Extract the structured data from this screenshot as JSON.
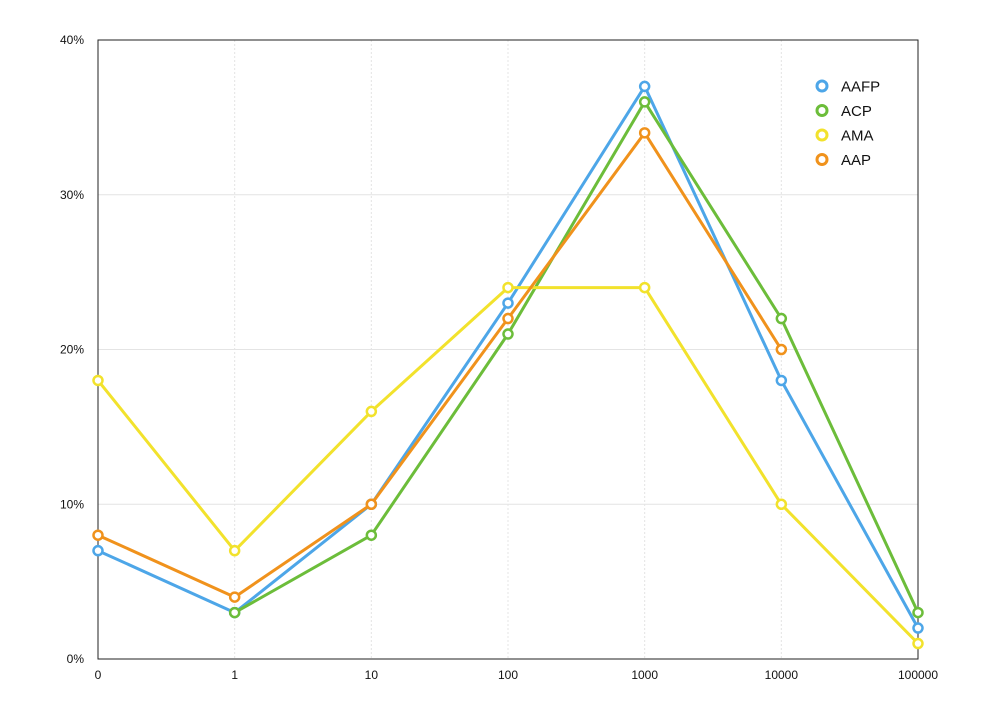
{
  "chart_data": {
    "type": "line",
    "title": "",
    "xlabel": "",
    "ylabel": "",
    "categories": [
      "0",
      "1",
      "10",
      "100",
      "1000",
      "10000",
      "100000"
    ],
    "y_ticks": [
      "0%",
      "10%",
      "20%",
      "30%",
      "40%"
    ],
    "ylim": [
      0,
      40
    ],
    "y_unit": "%",
    "grid": true,
    "legend_position": "top-right",
    "series": [
      {
        "name": "AAFP",
        "color": "#4da6e8",
        "values": [
          7,
          3,
          10,
          23,
          37,
          18,
          2
        ]
      },
      {
        "name": "ACP",
        "color": "#6cbd3a",
        "values": [
          null,
          3,
          8,
          21,
          36,
          22,
          3
        ]
      },
      {
        "name": "AMA",
        "color": "#f2e22c",
        "values": [
          18,
          7,
          16,
          24,
          24,
          10,
          1
        ]
      },
      {
        "name": "AAP",
        "color": "#f0921c",
        "values": [
          8,
          4,
          10,
          22,
          34,
          20,
          null
        ]
      }
    ]
  }
}
